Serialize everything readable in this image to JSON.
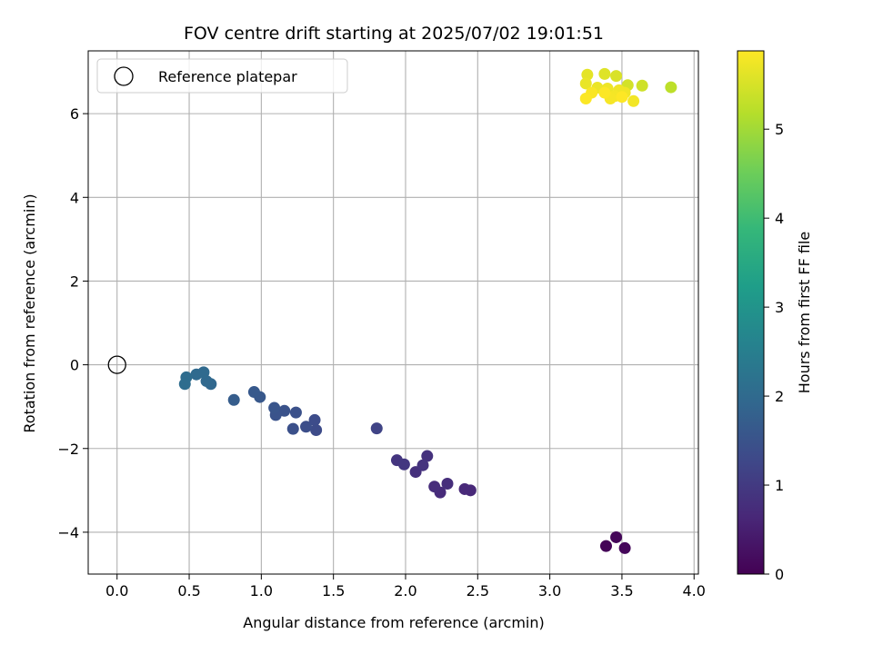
{
  "chart_data": {
    "type": "scatter",
    "title": "FOV centre drift starting at 2025/07/02 19:01:51",
    "xlabel": "Angular distance from reference (arcmin)",
    "ylabel": "Rotation from reference (arcmin)",
    "xlim": [
      -0.2,
      4.03
    ],
    "ylim": [
      -5.0,
      7.5
    ],
    "xticks": [
      0.0,
      0.5,
      1.0,
      1.5,
      2.0,
      2.5,
      3.0,
      3.5,
      4.0
    ],
    "xtick_labels": [
      "0.0",
      "0.5",
      "1.0",
      "1.5",
      "2.0",
      "2.5",
      "3.0",
      "3.5",
      "4.0"
    ],
    "yticks": [
      -4,
      -2,
      0,
      2,
      4,
      6
    ],
    "ytick_labels": [
      "−4",
      "−2",
      "0",
      "2",
      "4",
      "6"
    ],
    "grid": true,
    "legend": {
      "placement": "top-left",
      "entries": [
        "Reference platepar"
      ]
    },
    "reference_point": {
      "x": 0.0,
      "y": 0.0,
      "label": "Reference platepar"
    },
    "colorbar": {
      "label": "Hours from first FF file",
      "range": [
        0,
        5.88
      ],
      "ticks": [
        0,
        1,
        2,
        3,
        4,
        5
      ],
      "tick_labels": [
        "0",
        "1",
        "2",
        "3",
        "4",
        "5"
      ],
      "colormap": "viridis"
    },
    "points": [
      {
        "x": 3.39,
        "y": -4.33,
        "c": 0.05
      },
      {
        "x": 3.46,
        "y": -4.12,
        "c": 0.08
      },
      {
        "x": 3.52,
        "y": -4.38,
        "c": 0.1
      },
      {
        "x": 2.45,
        "y": -3.0,
        "c": 0.65
      },
      {
        "x": 2.41,
        "y": -2.97,
        "c": 0.68
      },
      {
        "x": 2.24,
        "y": -3.05,
        "c": 0.72
      },
      {
        "x": 2.2,
        "y": -2.91,
        "c": 0.75
      },
      {
        "x": 2.29,
        "y": -2.84,
        "c": 0.78
      },
      {
        "x": 2.07,
        "y": -2.56,
        "c": 0.82
      },
      {
        "x": 2.15,
        "y": -2.18,
        "c": 0.86
      },
      {
        "x": 2.12,
        "y": -2.4,
        "c": 0.88
      },
      {
        "x": 1.94,
        "y": -2.28,
        "c": 0.92
      },
      {
        "x": 1.99,
        "y": -2.38,
        "c": 0.95
      },
      {
        "x": 1.8,
        "y": -1.52,
        "c": 1.2
      },
      {
        "x": 1.38,
        "y": -1.56,
        "c": 1.35
      },
      {
        "x": 1.37,
        "y": -1.32,
        "c": 1.38
      },
      {
        "x": 1.31,
        "y": -1.48,
        "c": 1.42
      },
      {
        "x": 1.22,
        "y": -1.53,
        "c": 1.45
      },
      {
        "x": 1.24,
        "y": -1.14,
        "c": 1.48
      },
      {
        "x": 1.16,
        "y": -1.1,
        "c": 1.5
      },
      {
        "x": 1.1,
        "y": -1.2,
        "c": 1.52
      },
      {
        "x": 1.09,
        "y": -1.03,
        "c": 1.55
      },
      {
        "x": 0.99,
        "y": -0.77,
        "c": 1.62
      },
      {
        "x": 0.95,
        "y": -0.65,
        "c": 1.65
      },
      {
        "x": 0.81,
        "y": -0.84,
        "c": 1.72
      },
      {
        "x": 0.65,
        "y": -0.46,
        "c": 1.95
      },
      {
        "x": 0.62,
        "y": -0.39,
        "c": 1.98
      },
      {
        "x": 0.6,
        "y": -0.18,
        "c": 2.0
      },
      {
        "x": 0.55,
        "y": -0.23,
        "c": 2.02
      },
      {
        "x": 0.48,
        "y": -0.3,
        "c": 2.05
      },
      {
        "x": 0.47,
        "y": -0.46,
        "c": 2.08
      },
      {
        "x": 3.84,
        "y": 6.63,
        "c": 5.3
      },
      {
        "x": 3.64,
        "y": 6.67,
        "c": 5.45
      },
      {
        "x": 3.54,
        "y": 6.68,
        "c": 5.5
      },
      {
        "x": 3.46,
        "y": 6.9,
        "c": 5.55
      },
      {
        "x": 3.38,
        "y": 6.95,
        "c": 5.6
      },
      {
        "x": 3.26,
        "y": 6.93,
        "c": 5.65
      },
      {
        "x": 3.25,
        "y": 6.72,
        "c": 5.7
      },
      {
        "x": 3.33,
        "y": 6.62,
        "c": 5.72
      },
      {
        "x": 3.4,
        "y": 6.6,
        "c": 5.74
      },
      {
        "x": 3.48,
        "y": 6.56,
        "c": 5.75
      },
      {
        "x": 3.52,
        "y": 6.5,
        "c": 5.76
      },
      {
        "x": 3.58,
        "y": 6.3,
        "c": 5.78
      },
      {
        "x": 3.45,
        "y": 6.42,
        "c": 5.8
      },
      {
        "x": 3.42,
        "y": 6.36,
        "c": 5.82
      },
      {
        "x": 3.29,
        "y": 6.5,
        "c": 5.84
      },
      {
        "x": 3.25,
        "y": 6.36,
        "c": 5.86
      },
      {
        "x": 3.38,
        "y": 6.5,
        "c": 5.87
      },
      {
        "x": 3.5,
        "y": 6.4,
        "c": 5.88
      }
    ]
  }
}
